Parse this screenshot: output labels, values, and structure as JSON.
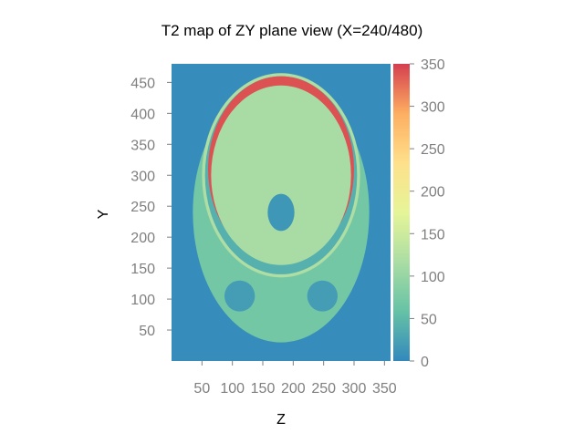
{
  "chart_data": {
    "type": "heatmap",
    "title": "T2 map of ZY plane view (X=240/480)",
    "xlabel": "Z",
    "ylabel": "Y",
    "xlim": [
      0,
      360
    ],
    "ylim": [
      0,
      480
    ],
    "xticks": [
      50,
      100,
      150,
      200,
      250,
      300,
      350
    ],
    "yticks": [
      50,
      100,
      150,
      200,
      250,
      300,
      350,
      400,
      450
    ],
    "colorbar": {
      "ticks": [
        0,
        50,
        100,
        150,
        200,
        250,
        300,
        350
      ],
      "range": [
        0,
        350
      ],
      "palette": [
        "#3288bd",
        "#66c2a5",
        "#abdda4",
        "#e6f598",
        "#fee08b",
        "#fdae61",
        "#d53e4f"
      ]
    },
    "background_value": 5,
    "regions": [
      {
        "name": "scalp-outer",
        "value": 70,
        "center": [
          180,
          240
        ],
        "radius": [
          145,
          210
        ]
      },
      {
        "name": "scalp-fat",
        "value": 120,
        "center": [
          180,
          300
        ],
        "radius": [
          130,
          165
        ]
      },
      {
        "name": "skull",
        "value": 40,
        "center": [
          180,
          300
        ],
        "radius": [
          125,
          160
        ]
      },
      {
        "name": "csf-upper",
        "value": 340,
        "center": [
          180,
          310
        ],
        "radius": [
          120,
          150
        ]
      },
      {
        "name": "brain",
        "value": 115,
        "center": [
          180,
          300
        ],
        "radius": [
          115,
          145
        ]
      },
      {
        "name": "brainstem-cavity",
        "value": 15,
        "center": [
          180,
          240
        ],
        "radius": [
          22,
          30
        ]
      },
      {
        "name": "left-orbit",
        "value": 20,
        "center": [
          112,
          105
        ],
        "radius": [
          25,
          25
        ]
      },
      {
        "name": "right-orbit",
        "value": 20,
        "center": [
          248,
          105
        ],
        "radius": [
          25,
          25
        ]
      }
    ]
  }
}
